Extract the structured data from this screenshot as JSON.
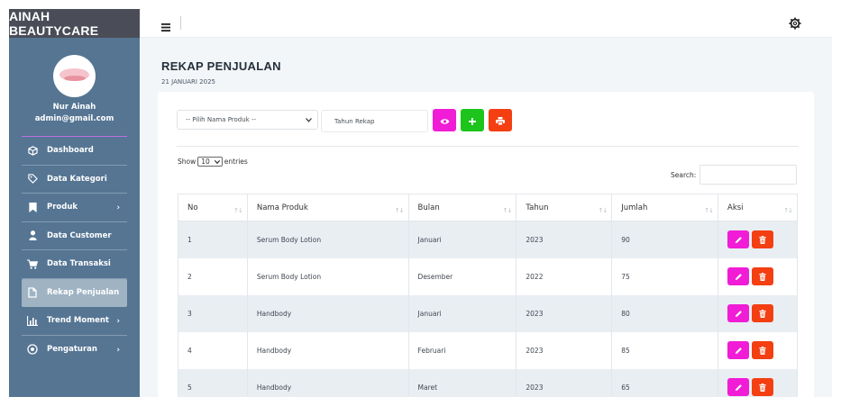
{
  "app": {
    "brand": "AINAH BEAUTYCARE"
  },
  "profile": {
    "name": "Nur Ainah",
    "email": "admin@gmail.com"
  },
  "sidebar": {
    "items": [
      {
        "label": "Dashboard",
        "icon": "cube-icon",
        "active": false,
        "has_chevron": false
      },
      {
        "label": "Data Kategori",
        "icon": "tag-icon",
        "active": false,
        "has_chevron": false
      },
      {
        "label": "Produk",
        "icon": "bookmark-icon",
        "active": false,
        "has_chevron": true,
        "chevron": "›"
      },
      {
        "label": "Data Customer",
        "icon": "user-icon",
        "active": false,
        "has_chevron": false
      },
      {
        "label": "Data Transaksi",
        "icon": "cart-icon",
        "active": false,
        "has_chevron": false
      },
      {
        "label": "Rekap Penjualan",
        "icon": "file-icon",
        "active": true,
        "has_chevron": false
      },
      {
        "label": "Trend Moment",
        "icon": "bar-chart-icon",
        "active": false,
        "has_chevron": true,
        "chevron": "›"
      },
      {
        "label": "Pengaturan",
        "icon": "settings-circle-icon",
        "active": false,
        "has_chevron": true,
        "chevron": "›"
      }
    ]
  },
  "header": {
    "menu_icon": "hamburger-icon",
    "settings_icon": "gear-icon"
  },
  "page": {
    "title": "REKAP PENJUALAN",
    "date": "21 JANUARI 2025"
  },
  "filters": {
    "product_select": "-- Pilih Nama Produk --",
    "year_placeholder": "Tahun Rekap",
    "view_icon": "eye-icon",
    "add_icon": "plus-icon",
    "print_icon": "printer-icon"
  },
  "table_controls": {
    "show_label": "Show",
    "entries_value": "10",
    "entries_label": "entries",
    "search_label": "Search:"
  },
  "table": {
    "sort_glyph": "↑↓",
    "columns": [
      "No",
      "Nama Produk",
      "Bulan",
      "Tahun",
      "Jumlah",
      "Aksi"
    ],
    "rows": [
      {
        "no": "1",
        "produk": "Serum Body Lotion",
        "bulan": "Januari",
        "tahun": "2023",
        "jumlah": "90"
      },
      {
        "no": "2",
        "produk": "Serum Body Lotion",
        "bulan": "Desember",
        "tahun": "2022",
        "jumlah": "75"
      },
      {
        "no": "3",
        "produk": "Handbody",
        "bulan": "Januari",
        "tahun": "2023",
        "jumlah": "80"
      },
      {
        "no": "4",
        "produk": "Handbody",
        "bulan": "Februari",
        "tahun": "2023",
        "jumlah": "85"
      },
      {
        "no": "5",
        "produk": "Handbody",
        "bulan": "Maret",
        "tahun": "2023",
        "jumlah": "65"
      }
    ],
    "edit_icon": "pencil-icon",
    "delete_icon": "trash-icon"
  },
  "colors": {
    "sidebar": "#557593",
    "brand_bar": "#4a4d57",
    "magenta": "#f11cd6",
    "green": "#1cc41c",
    "red": "#f43f12",
    "row_stripe": "#e9eef3"
  }
}
